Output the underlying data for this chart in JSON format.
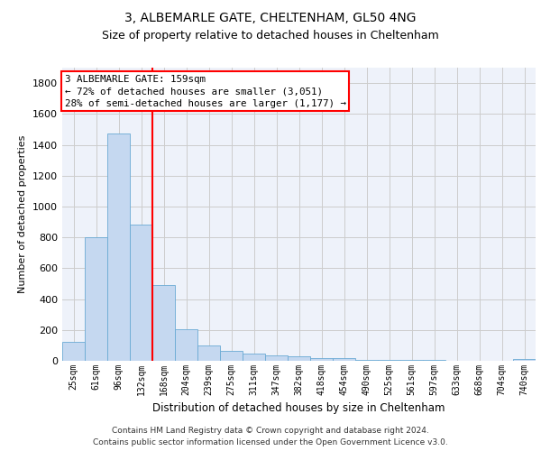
{
  "title1": "3, ALBEMARLE GATE, CHELTENHAM, GL50 4NG",
  "title2": "Size of property relative to detached houses in Cheltenham",
  "xlabel": "Distribution of detached houses by size in Cheltenham",
  "ylabel": "Number of detached properties",
  "footnote1": "Contains HM Land Registry data © Crown copyright and database right 2024.",
  "footnote2": "Contains public sector information licensed under the Open Government Licence v3.0.",
  "categories": [
    "25sqm",
    "61sqm",
    "96sqm",
    "132sqm",
    "168sqm",
    "204sqm",
    "239sqm",
    "275sqm",
    "311sqm",
    "347sqm",
    "382sqm",
    "418sqm",
    "454sqm",
    "490sqm",
    "525sqm",
    "561sqm",
    "597sqm",
    "633sqm",
    "668sqm",
    "704sqm",
    "740sqm"
  ],
  "values": [
    125,
    800,
    1475,
    880,
    490,
    205,
    100,
    65,
    45,
    35,
    30,
    20,
    15,
    8,
    5,
    4,
    3,
    2,
    2,
    1,
    10
  ],
  "bar_color": "#c5d8f0",
  "bar_edge_color": "#6aaad4",
  "property_line_color": "red",
  "annotation_text": "3 ALBEMARLE GATE: 159sqm\n← 72% of detached houses are smaller (3,051)\n28% of semi-detached houses are larger (1,177) →",
  "grid_color": "#cccccc",
  "ylim": [
    0,
    1900
  ],
  "yticks": [
    0,
    200,
    400,
    600,
    800,
    1000,
    1200,
    1400,
    1600,
    1800
  ],
  "bg_color": "#eef2fa"
}
